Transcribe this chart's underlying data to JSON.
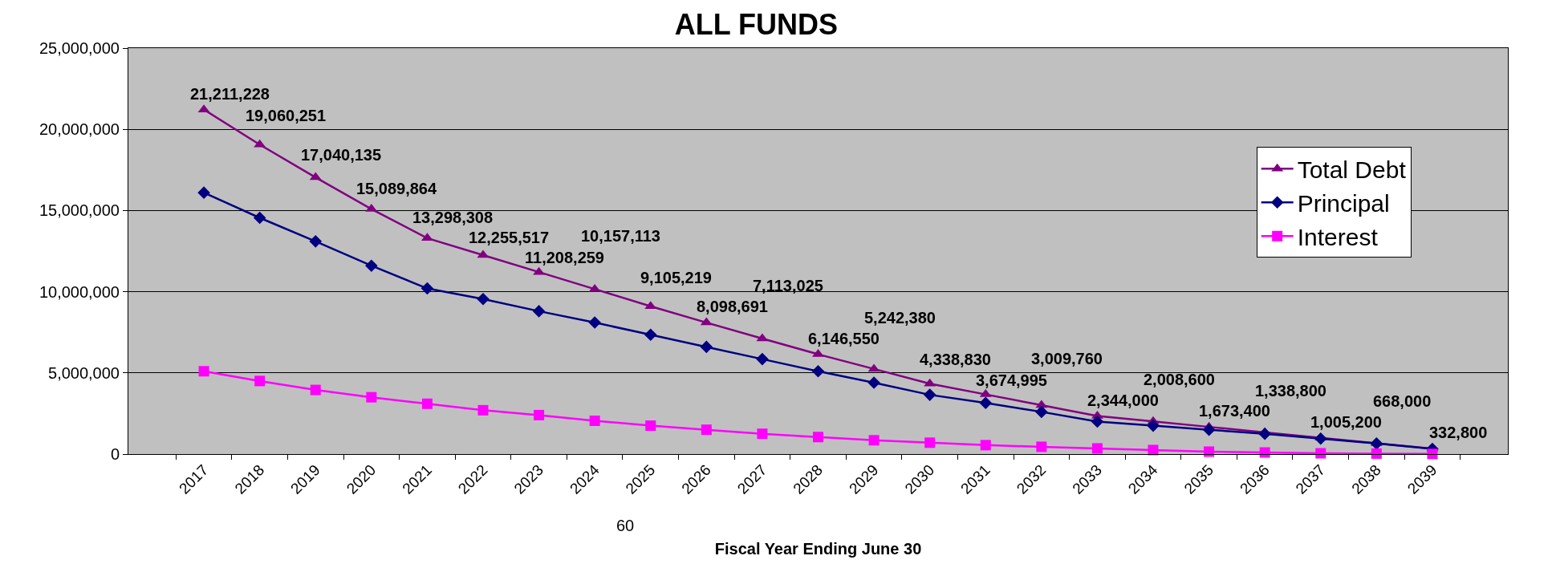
{
  "chart_data": {
    "type": "line",
    "title": "ALL FUNDS",
    "xlabel": "Fiscal Year Ending June 30",
    "annotations": [
      "60"
    ],
    "categories": [
      "2017",
      "2018",
      "2019",
      "2020",
      "2021",
      "2022",
      "2023",
      "2024",
      "2025",
      "2026",
      "2027",
      "2028",
      "2029",
      "2030",
      "2031",
      "2032",
      "2033",
      "2034",
      "2035",
      "2036",
      "2037",
      "2038",
      "2039"
    ],
    "ylim": [
      0,
      25000000
    ],
    "yticks": [
      0,
      {
        "value": 5000000,
        "label": "5,000,000"
      },
      {
        "value": 10000000,
        "label": "10,000,000"
      },
      {
        "value": 15000000,
        "label": "15,000,000"
      },
      {
        "value": 20000000,
        "label": "20,000,000"
      },
      {
        "value": 25000000,
        "label": "25,000,000"
      }
    ],
    "grid": "y",
    "legend": "right",
    "line_style": "solid",
    "series": [
      {
        "name": "Total Debt",
        "color": "#800080",
        "marker": "triangle",
        "values": [
          21211228,
          19060251,
          17040135,
          15089864,
          13298308,
          12255517,
          11208259,
          10157113,
          9105219,
          8098691,
          7113025,
          6146550,
          5242380,
          4338830,
          3674995,
          3009760,
          2344000,
          2008600,
          1673400,
          1338800,
          1005200,
          668000,
          332800
        ],
        "value_labels": [
          "21,211,228",
          "19,060,251",
          "17,040,135",
          "15,089,864",
          "13,298,308",
          "12,255,517",
          "11,208,259",
          "10,157,113",
          "9,105,219",
          "8,098,691",
          "7,113,025",
          "6,146,550",
          "5,242,380",
          "4,338,830",
          "3,674,995",
          "3,009,760",
          "2,344,000",
          "2,008,600",
          "1,673,400",
          "1,338,800",
          "1,005,200",
          "668,000",
          "332,800"
        ]
      },
      {
        "name": "Principal",
        "color": "#000080",
        "marker": "diamond",
        "values": [
          16100000,
          14550000,
          13100000,
          11600000,
          10200000,
          9550000,
          8800000,
          8100000,
          7350000,
          6600000,
          5850000,
          5100000,
          4400000,
          3650000,
          3150000,
          2600000,
          2000000,
          1750000,
          1500000,
          1250000,
          950000,
          650000,
          320000
        ]
      },
      {
        "name": "Interest",
        "color": "#ff00ff",
        "marker": "square",
        "values": [
          5100000,
          4500000,
          3950000,
          3500000,
          3100000,
          2700000,
          2400000,
          2050000,
          1750000,
          1500000,
          1250000,
          1050000,
          850000,
          700000,
          550000,
          450000,
          350000,
          250000,
          150000,
          100000,
          50000,
          30000,
          10000
        ]
      }
    ]
  }
}
